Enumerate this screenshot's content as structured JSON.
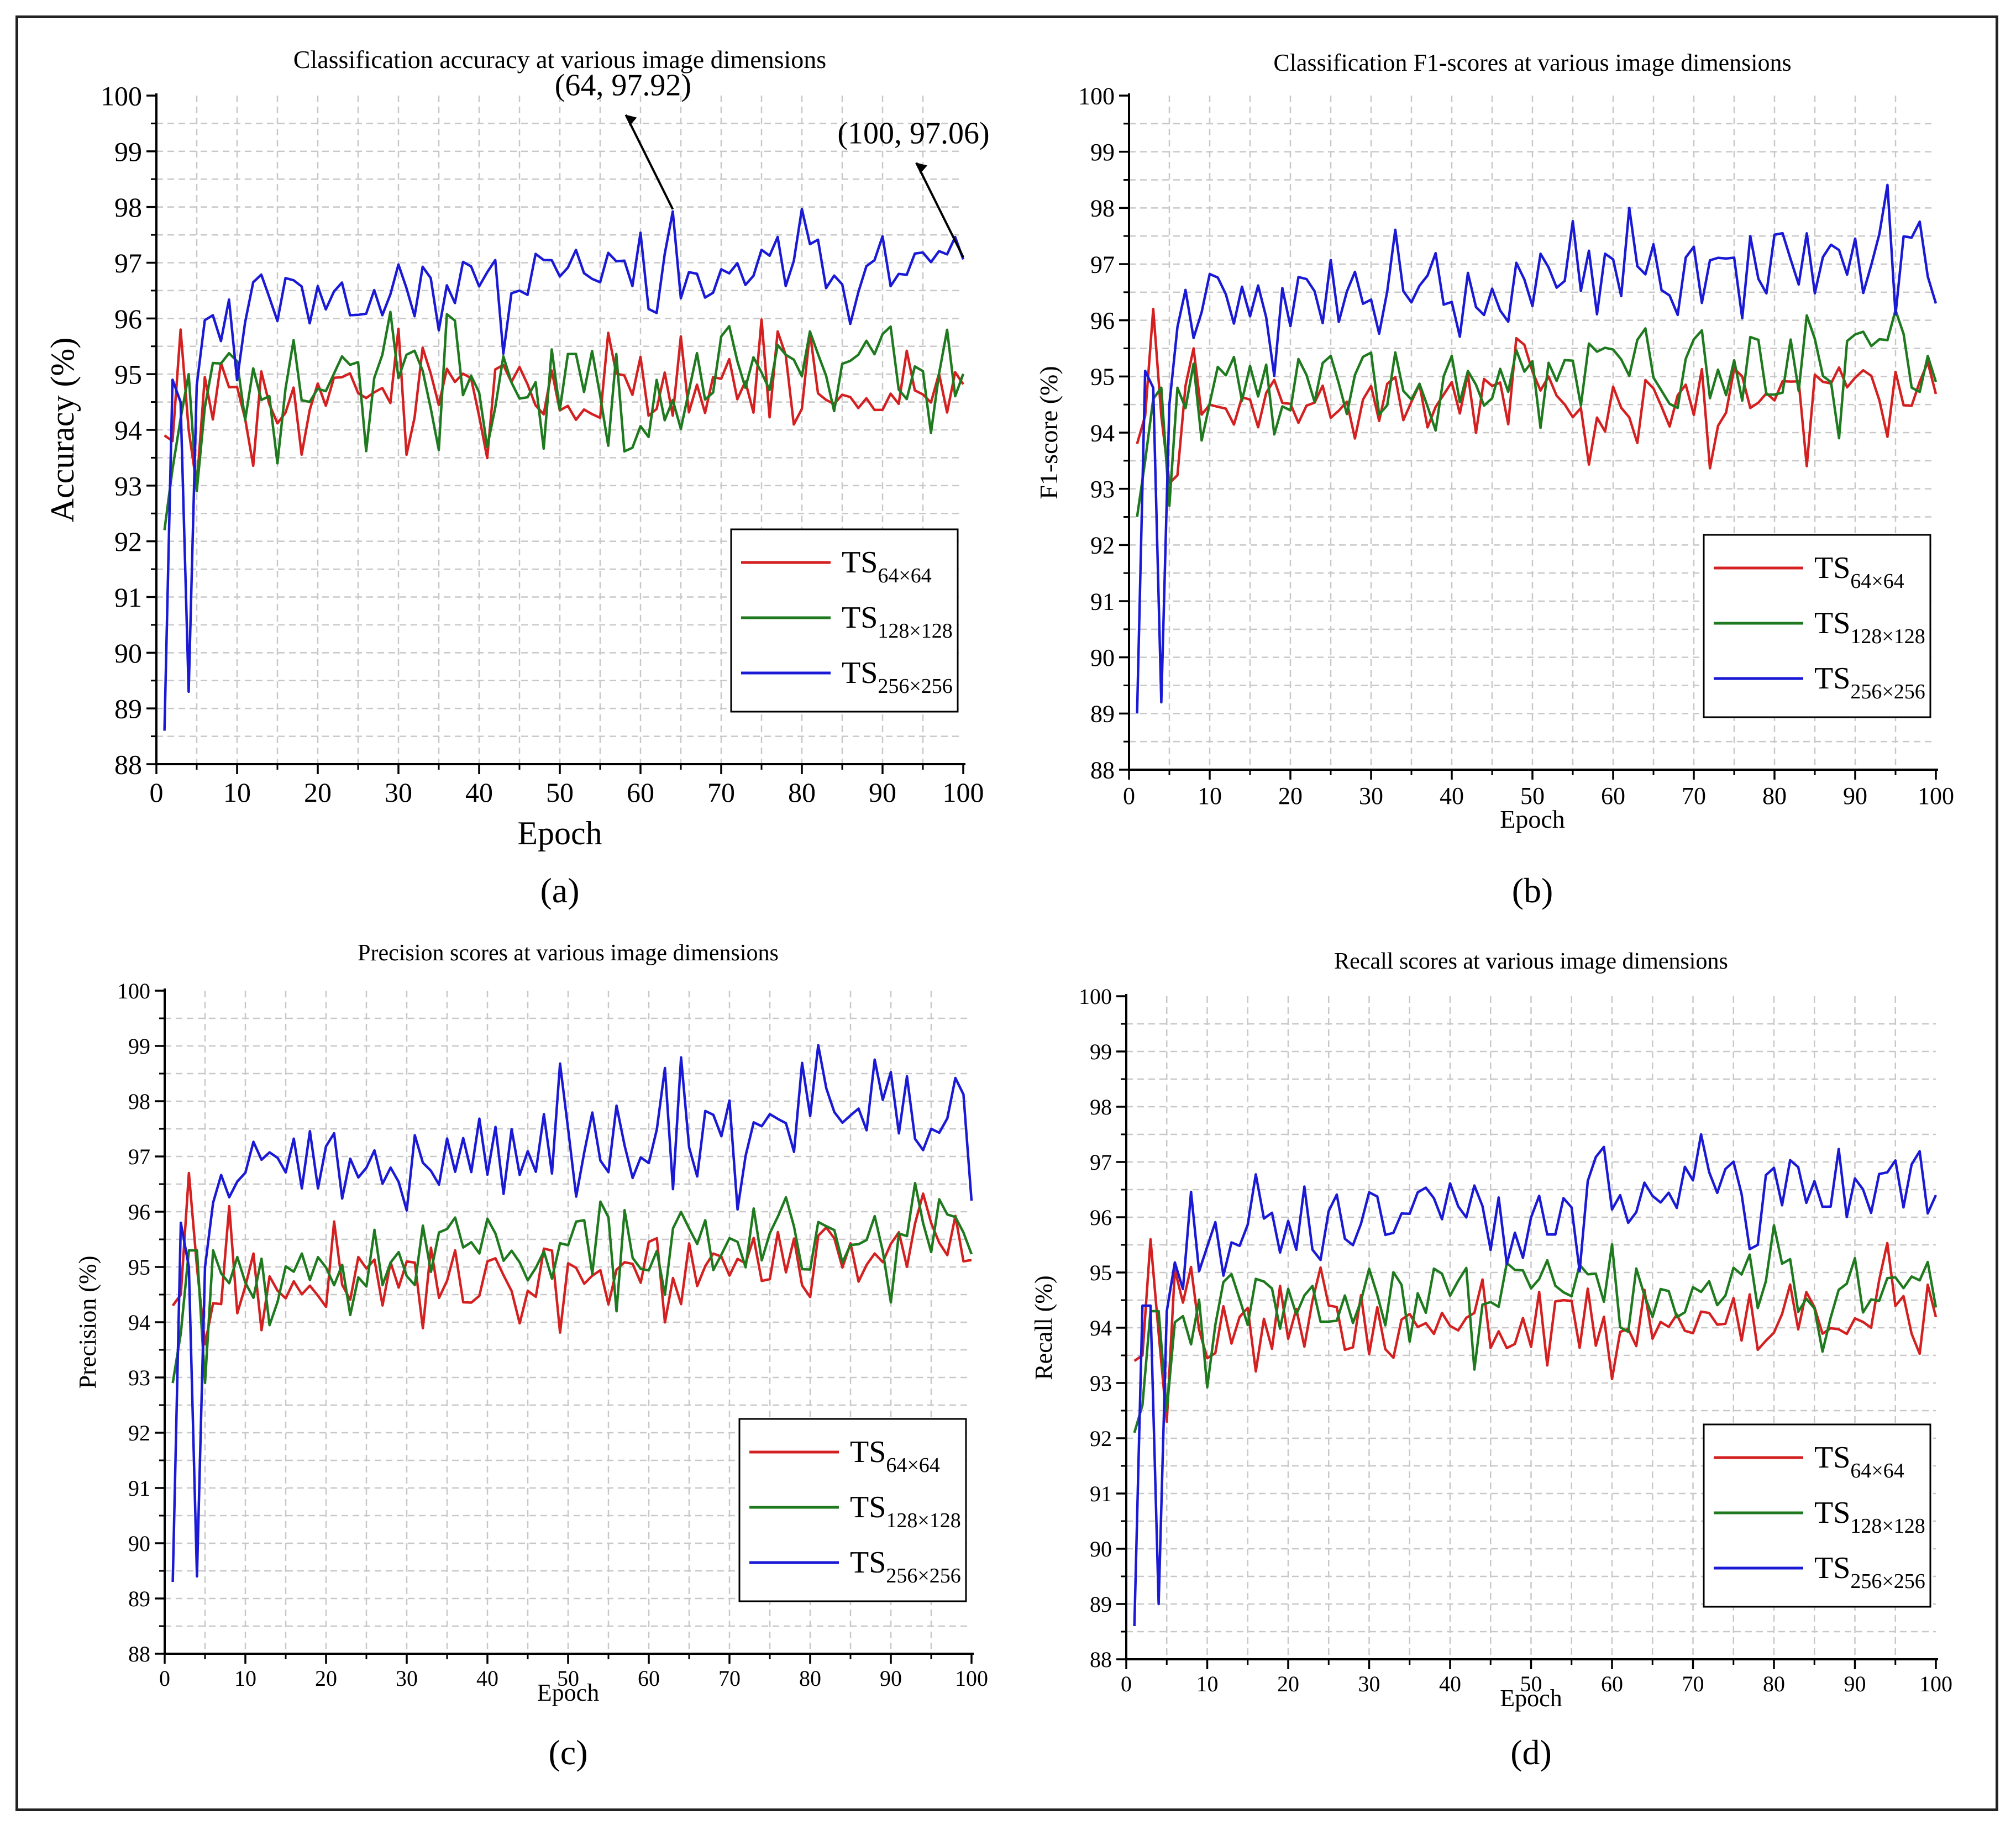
{
  "figure": {
    "panels": [
      "(a)",
      "(b)",
      "(c)",
      "(d)"
    ]
  },
  "colors": {
    "ts64": "#d42020",
    "ts128": "#1f7a1f",
    "ts256": "#1a1ad6",
    "grid": "#c8c8c8",
    "axis": "#000000"
  },
  "chart_data": [
    {
      "type": "line",
      "title": "Classification accuracy at various image dimensions",
      "xlabel": "Epoch",
      "ylabel": "Accuracy (%)",
      "xlim": [
        0,
        100
      ],
      "ylim": [
        88,
        100
      ],
      "xticks": [
        "0",
        "10",
        "20",
        "30",
        "40",
        "50",
        "60",
        "70",
        "80",
        "90",
        "100"
      ],
      "yticks": [
        "88",
        "89",
        "90",
        "91",
        "92",
        "93",
        "94",
        "95",
        "96",
        "97",
        "98",
        "99",
        "100"
      ],
      "grid": true,
      "legend_position": "lower-right",
      "annotations": [
        {
          "text": "(64, 97.92)",
          "x": 64,
          "y": 97.92
        },
        {
          "text": "(100, 97.06)",
          "x": 100,
          "y": 97.06
        }
      ],
      "series": [
        {
          "key": "ts64",
          "name": "TS",
          "sub": "64×64",
          "seed": 11,
          "anchors": {
            "1": 93.9,
            "2": 93.8,
            "3": 95.8,
            "4": 94.0,
            "5": 93.0,
            "8": 95.2
          },
          "base": 94.5,
          "trend": 0.004,
          "amp": 0.55
        },
        {
          "key": "ts128",
          "name": "TS",
          "sub": "128×128",
          "seed": 23,
          "anchors": {
            "1": 92.2,
            "2": 93.3,
            "3": 94.2,
            "4": 95.0,
            "5": 92.9,
            "6": 94.4,
            "7": 95.2
          },
          "base": 94.7,
          "trend": 0.006,
          "amp": 0.6
        },
        {
          "key": "ts256",
          "name": "TS",
          "sub": "256×256",
          "seed": 37,
          "anchors": {
            "1": 88.6,
            "2": 94.9,
            "3": 94.5,
            "4": 89.3,
            "5": 94.8,
            "64": 97.92,
            "100": 97.06
          },
          "base": 96.1,
          "trend": 0.011,
          "amp": 0.55
        }
      ]
    },
    {
      "type": "line",
      "title": "Classification F1-scores at various image dimensions",
      "xlabel": "Epoch",
      "ylabel": "F1-score (%)",
      "xlim": [
        0,
        100
      ],
      "ylim": [
        88,
        100
      ],
      "xticks": [
        "0",
        "10",
        "20",
        "30",
        "40",
        "50",
        "60",
        "70",
        "80",
        "90",
        "100"
      ],
      "yticks": [
        "88",
        "89",
        "90",
        "91",
        "92",
        "93",
        "94",
        "95",
        "96",
        "97",
        "98",
        "99",
        "100"
      ],
      "grid": true,
      "legend_position": "lower-right",
      "annotations": [],
      "series": [
        {
          "key": "ts64",
          "name": "TS",
          "sub": "64×64",
          "seed": 13,
          "anchors": {
            "1": 93.8,
            "2": 94.3,
            "3": 96.2,
            "4": 94.3,
            "5": 93.1,
            "8": 95.5
          },
          "base": 94.3,
          "trend": 0.005,
          "amp": 0.55
        },
        {
          "key": "ts128",
          "name": "TS",
          "sub": "128×128",
          "seed": 29,
          "anchors": {
            "1": 92.5,
            "2": 93.5,
            "3": 94.6,
            "4": 94.8,
            "5": 92.7,
            "6": 94.8
          },
          "base": 94.7,
          "trend": 0.006,
          "amp": 0.6
        },
        {
          "key": "ts256",
          "name": "TS",
          "sub": "256×256",
          "seed": 41,
          "anchors": {
            "1": 89.0,
            "2": 95.1,
            "3": 94.8,
            "4": 89.2,
            "5": 94.5,
            "62": 98.0,
            "100": 96.3
          },
          "base": 96.0,
          "trend": 0.012,
          "amp": 0.6
        }
      ]
    },
    {
      "type": "line",
      "title": "Precision scores at various image dimensions",
      "xlabel": "Epoch",
      "ylabel": "Precision (%)",
      "xlim": [
        0,
        100
      ],
      "ylim": [
        88,
        100
      ],
      "xticks": [
        "0",
        "10",
        "20",
        "30",
        "40",
        "50",
        "60",
        "70",
        "80",
        "90",
        "100"
      ],
      "yticks": [
        "88",
        "89",
        "90",
        "91",
        "92",
        "93",
        "94",
        "95",
        "96",
        "97",
        "98",
        "99",
        "100"
      ],
      "grid": true,
      "legend_position": "lower-right",
      "annotations": [],
      "series": [
        {
          "key": "ts64",
          "name": "TS",
          "sub": "64×64",
          "seed": 17,
          "anchors": {
            "1": 94.3,
            "2": 94.5,
            "3": 96.7,
            "4": 95.0,
            "5": 93.6,
            "8": 96.1
          },
          "base": 94.6,
          "trend": 0.007,
          "amp": 0.55
        },
        {
          "key": "ts128",
          "name": "TS",
          "sub": "128×128",
          "seed": 31,
          "anchors": {
            "1": 92.9,
            "2": 93.8,
            "3": 95.3,
            "4": 95.3,
            "5": 92.9,
            "6": 95.3
          },
          "base": 95.0,
          "trend": 0.007,
          "amp": 0.65
        },
        {
          "key": "ts256",
          "name": "TS",
          "sub": "256×256",
          "seed": 43,
          "anchors": {
            "1": 89.3,
            "2": 95.8,
            "3": 95.0,
            "4": 89.4,
            "5": 95.0,
            "62": 98.6,
            "100": 96.2
          },
          "base": 96.7,
          "trend": 0.012,
          "amp": 0.65
        }
      ]
    },
    {
      "type": "line",
      "title": "Recall scores at various image dimensions",
      "xlabel": "Epoch",
      "ylabel": "Recall (%)",
      "xlim": [
        0,
        100
      ],
      "ylim": [
        88,
        100
      ],
      "xticks": [
        "0",
        "10",
        "20",
        "30",
        "40",
        "50",
        "60",
        "70",
        "80",
        "90",
        "100"
      ],
      "yticks": [
        "88",
        "89",
        "90",
        "91",
        "92",
        "93",
        "94",
        "95",
        "96",
        "97",
        "98",
        "99",
        "100"
      ],
      "grid": true,
      "legend_position": "lower-right",
      "annotations": [],
      "series": [
        {
          "key": "ts64",
          "name": "TS",
          "sub": "64×64",
          "seed": 19,
          "anchors": {
            "1": 93.4,
            "2": 93.5,
            "3": 95.6,
            "4": 93.9,
            "5": 92.3,
            "8": 95.1
          },
          "base": 93.9,
          "trend": 0.005,
          "amp": 0.55
        },
        {
          "key": "ts128",
          "name": "TS",
          "sub": "128×128",
          "seed": 37,
          "anchors": {
            "1": 92.1,
            "2": 92.6,
            "3": 94.3,
            "4": 94.3,
            "5": 92.5,
            "6": 94.1
          },
          "base": 94.3,
          "trend": 0.006,
          "amp": 0.6
        },
        {
          "key": "ts256",
          "name": "TS",
          "sub": "256×256",
          "seed": 47,
          "anchors": {
            "1": 88.6,
            "2": 94.4,
            "3": 94.4,
            "4": 89.0,
            "5": 94.3,
            "71": 97.5,
            "100": 96.4
          },
          "base": 95.6,
          "trend": 0.013,
          "amp": 0.55
        }
      ]
    }
  ]
}
